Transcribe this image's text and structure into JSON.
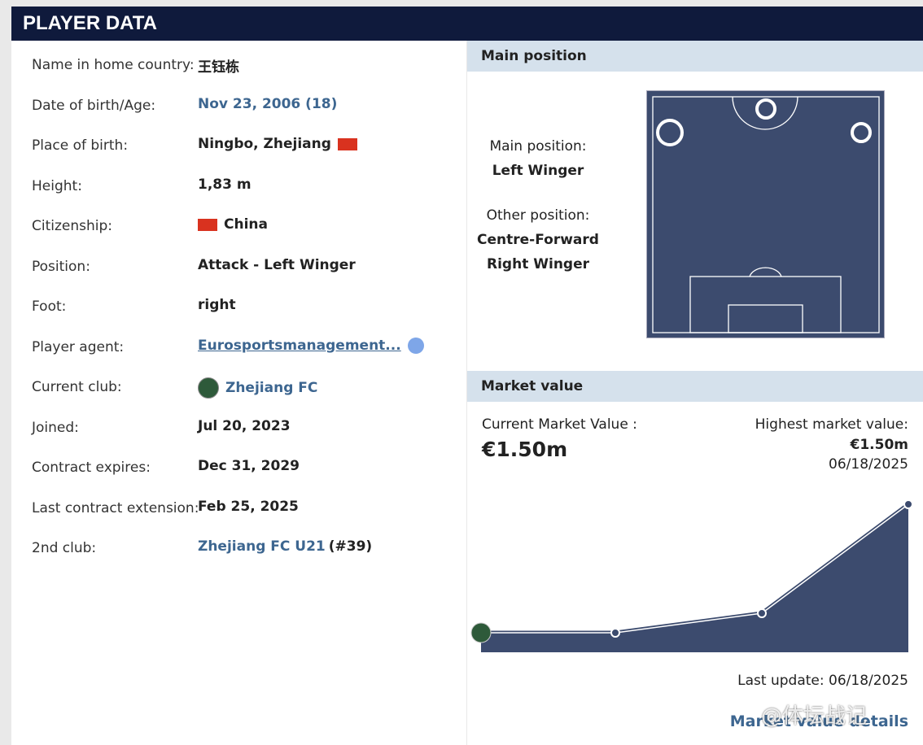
{
  "header": {
    "title": "PLAYER DATA"
  },
  "player_data": {
    "rows": [
      {
        "label": "Name in home country:",
        "value": "王钰栋"
      },
      {
        "label": "Date of birth/Age:",
        "value": "Nov 23, 2006 (18)"
      },
      {
        "label": "Place of birth:",
        "value": "Ningbo, Zhejiang"
      },
      {
        "label": "Height:",
        "value": "1,83 m"
      },
      {
        "label": "Citizenship:",
        "value": "China"
      },
      {
        "label": "Position:",
        "value": "Attack - Left Winger"
      },
      {
        "label": "Foot:",
        "value": "right"
      },
      {
        "label": "Player agent:",
        "value": "Eurosportsmanagement..."
      },
      {
        "label": "Current club:",
        "value": "Zhejiang FC"
      },
      {
        "label": "Joined:",
        "value": "Jul 20, 2023"
      },
      {
        "label": "Contract expires:",
        "value": "Dec 31, 2029"
      },
      {
        "label": "Last contract extension:",
        "value": "Feb 25, 2025"
      },
      {
        "label": "2nd club:",
        "value": "Zhejiang FC U21",
        "extra": "(#39)"
      }
    ]
  },
  "main_position": {
    "title": "Main position",
    "main_label": "Main position:",
    "main": "Left Winger",
    "other_label": "Other position:",
    "other": [
      "Centre-Forward",
      "Right Winger"
    ]
  },
  "market_value": {
    "title": "Market value",
    "current_label": "Current Market Value :",
    "current": "€1.50m",
    "highest_label": "Highest market value:",
    "highest": "€1.50m",
    "highest_date": "06/18/2025",
    "last_update": "Last update: 06/18/2025",
    "details_link": "Market value details"
  },
  "watermark": "@体坛战记"
}
